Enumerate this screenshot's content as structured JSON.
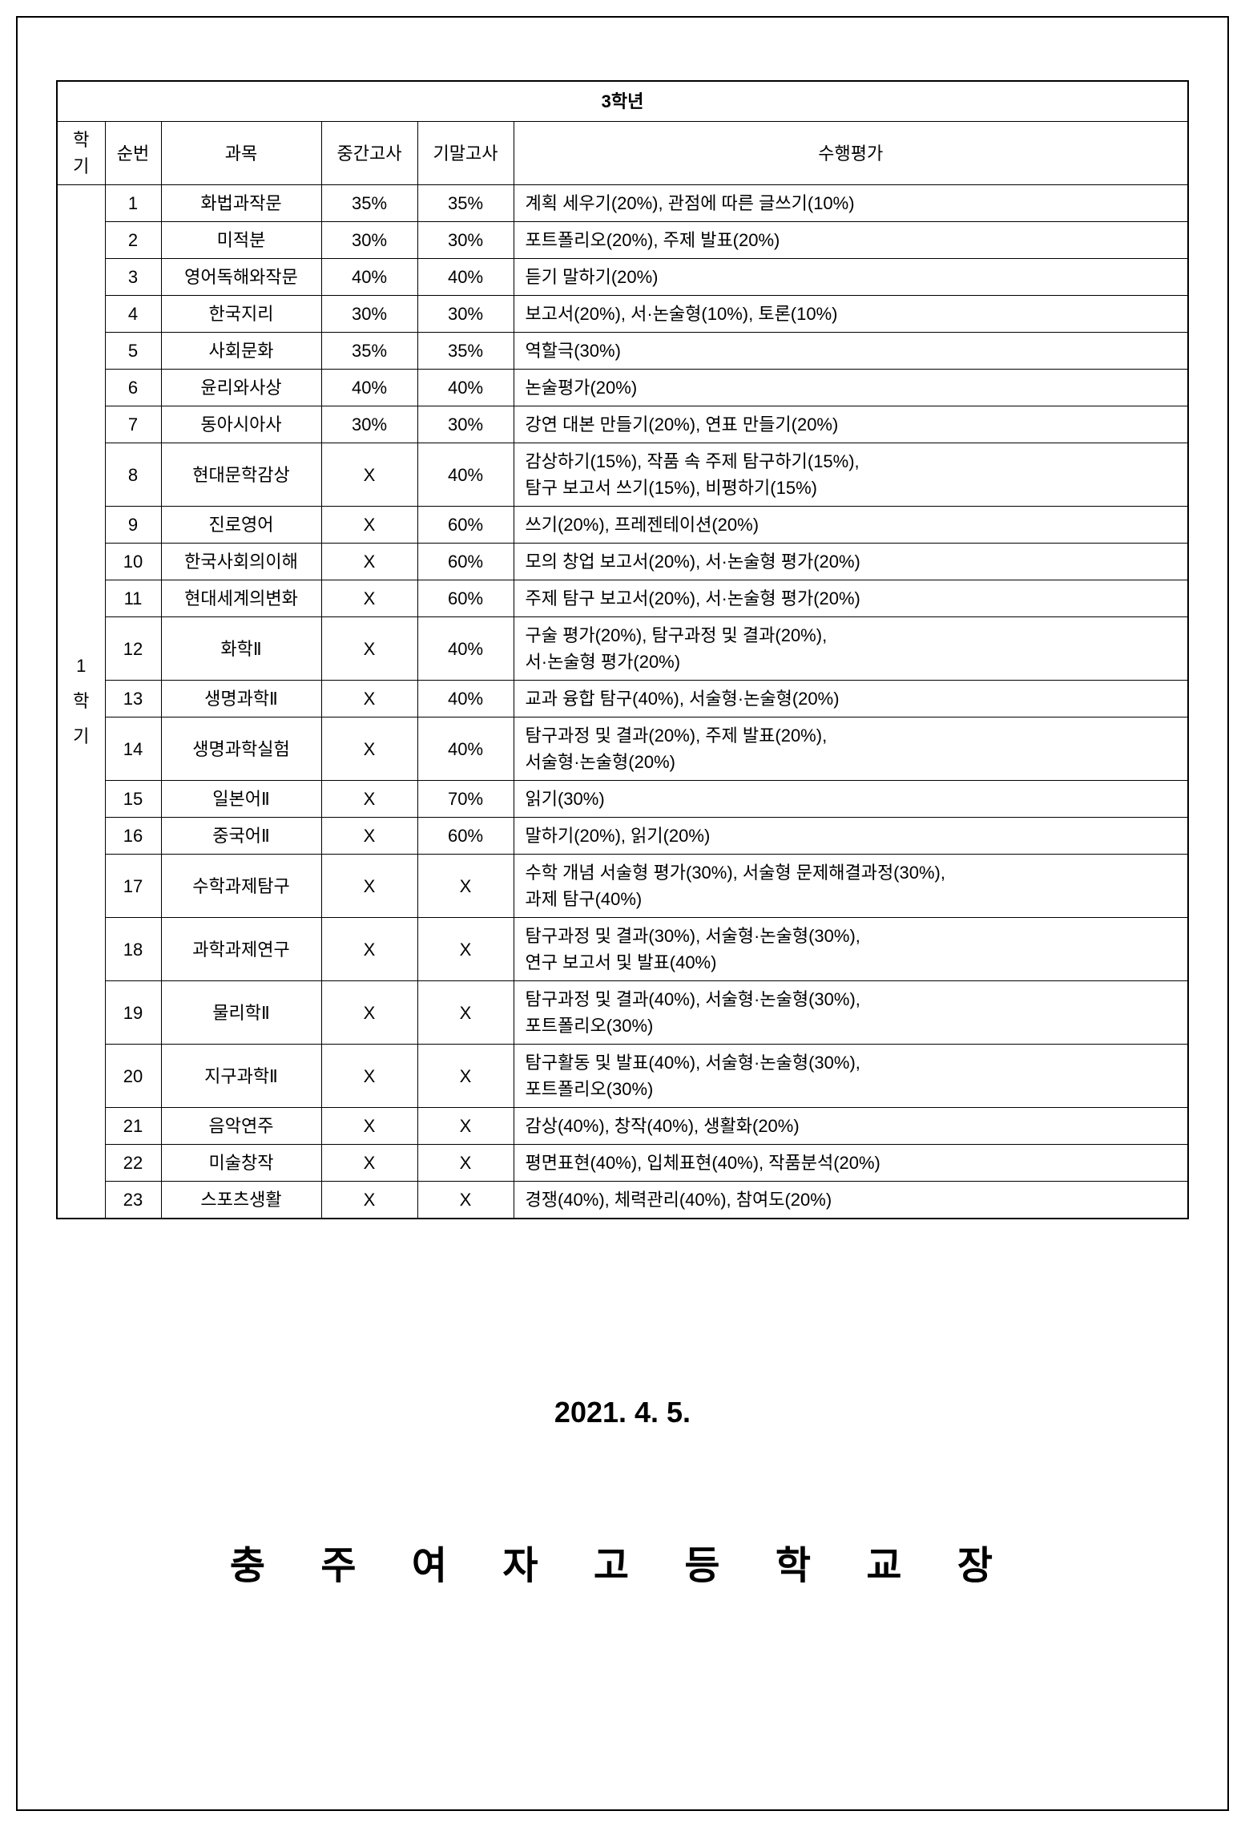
{
  "table": {
    "title": "3학년",
    "headers": {
      "semester": "학기",
      "num": "순번",
      "subject": "과목",
      "midterm": "중간고사",
      "final": "기말고사",
      "performance": "수행평가"
    },
    "semester_label": "1\n학\n기",
    "rows": [
      {
        "num": "1",
        "subject": "화법과작문",
        "mid": "35%",
        "final": "35%",
        "perf": "계획 세우기(20%), 관점에 따른 글쓰기(10%)"
      },
      {
        "num": "2",
        "subject": "미적분",
        "mid": "30%",
        "final": "30%",
        "perf": "포트폴리오(20%), 주제 발표(20%)"
      },
      {
        "num": "3",
        "subject": "영어독해와작문",
        "mid": "40%",
        "final": "40%",
        "perf": "듣기 말하기(20%)"
      },
      {
        "num": "4",
        "subject": "한국지리",
        "mid": "30%",
        "final": "30%",
        "perf": "보고서(20%), 서·논술형(10%), 토론(10%)"
      },
      {
        "num": "5",
        "subject": "사회문화",
        "mid": "35%",
        "final": "35%",
        "perf": "역할극(30%)"
      },
      {
        "num": "6",
        "subject": "윤리와사상",
        "mid": "40%",
        "final": "40%",
        "perf": "논술평가(20%)"
      },
      {
        "num": "7",
        "subject": "동아시아사",
        "mid": "30%",
        "final": "30%",
        "perf": "강연 대본 만들기(20%), 연표 만들기(20%)"
      },
      {
        "num": "8",
        "subject": "현대문학감상",
        "mid": "X",
        "final": "40%",
        "perf": "감상하기(15%), 작품 속 주제 탐구하기(15%),\n탐구 보고서 쓰기(15%), 비평하기(15%)"
      },
      {
        "num": "9",
        "subject": "진로영어",
        "mid": "X",
        "final": "60%",
        "perf": "쓰기(20%), 프레젠테이션(20%)"
      },
      {
        "num": "10",
        "subject": "한국사회의이해",
        "mid": "X",
        "final": "60%",
        "perf": "모의 창업 보고서(20%), 서·논술형 평가(20%)"
      },
      {
        "num": "11",
        "subject": "현대세계의변화",
        "mid": "X",
        "final": "60%",
        "perf": "주제 탐구 보고서(20%), 서·논술형 평가(20%)"
      },
      {
        "num": "12",
        "subject": "화학Ⅱ",
        "mid": "X",
        "final": "40%",
        "perf": "구술 평가(20%), 탐구과정 및 결과(20%),\n서·논술형 평가(20%)"
      },
      {
        "num": "13",
        "subject": "생명과학Ⅱ",
        "mid": "X",
        "final": "40%",
        "perf": "교과 융합 탐구(40%), 서술형·논술형(20%)"
      },
      {
        "num": "14",
        "subject": "생명과학실험",
        "mid": "X",
        "final": "40%",
        "perf": "탐구과정 및 결과(20%), 주제 발표(20%),\n서술형·논술형(20%)"
      },
      {
        "num": "15",
        "subject": "일본어Ⅱ",
        "mid": "X",
        "final": "70%",
        "perf": "읽기(30%)"
      },
      {
        "num": "16",
        "subject": "중국어Ⅱ",
        "mid": "X",
        "final": "60%",
        "perf": "말하기(20%), 읽기(20%)"
      },
      {
        "num": "17",
        "subject": "수학과제탐구",
        "mid": "X",
        "final": "X",
        "perf": "수학 개념 서술형 평가(30%), 서술형 문제해결과정(30%),\n과제 탐구(40%)"
      },
      {
        "num": "18",
        "subject": "과학과제연구",
        "mid": "X",
        "final": "X",
        "perf": "탐구과정 및 결과(30%), 서술형·논술형(30%),\n연구 보고서 및 발표(40%)"
      },
      {
        "num": "19",
        "subject": "물리학Ⅱ",
        "mid": "X",
        "final": "X",
        "perf": "탐구과정 및 결과(40%), 서술형·논술형(30%),\n포트폴리오(30%)"
      },
      {
        "num": "20",
        "subject": "지구과학Ⅱ",
        "mid": "X",
        "final": "X",
        "perf": "탐구활동 및 발표(40%), 서술형·논술형(30%),\n포트폴리오(30%)"
      },
      {
        "num": "21",
        "subject": "음악연주",
        "mid": "X",
        "final": "X",
        "perf": "감상(40%), 창작(40%), 생활화(20%)"
      },
      {
        "num": "22",
        "subject": "미술창작",
        "mid": "X",
        "final": "X",
        "perf": "평면표현(40%), 입체표현(40%), 작품분석(20%)"
      },
      {
        "num": "23",
        "subject": "스포츠생활",
        "mid": "X",
        "final": "X",
        "perf": "경쟁(40%), 체력관리(40%), 참여도(20%)"
      }
    ]
  },
  "date": "2021. 4. 5.",
  "school": "충 주 여 자 고 등 학 교 장",
  "styling": {
    "border_color": "#000000",
    "background_color": "#ffffff",
    "text_color": "#000000",
    "title_fontsize": 22,
    "body_fontsize": 22,
    "date_fontsize": 36,
    "school_fontsize": 48
  }
}
